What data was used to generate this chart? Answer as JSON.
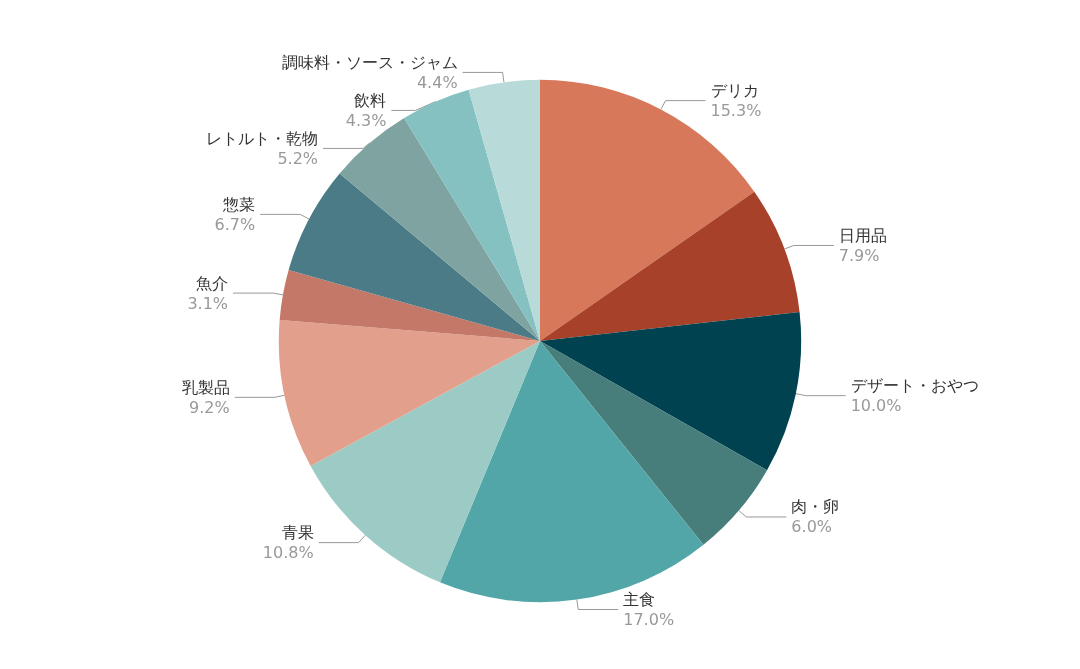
{
  "chart_data": {
    "type": "pie",
    "categories": [
      "デリカ",
      "日用品",
      "デザート・おやつ",
      "肉・卵",
      "主食",
      "青果",
      "乳製品",
      "魚介",
      "惣菜",
      "レトルト・乾物",
      "飲料",
      "調味料・ソース・ジャム"
    ],
    "values": [
      15.3,
      7.9,
      10.0,
      6.0,
      17.0,
      10.8,
      9.2,
      3.1,
      6.7,
      5.2,
      4.3,
      4.4
    ],
    "value_labels": [
      "15.3%",
      "7.9%",
      "10.0%",
      "6.0%",
      "17.0%",
      "10.8%",
      "9.2%",
      "3.1%",
      "6.7%",
      "5.2%",
      "4.3%",
      "4.4%"
    ],
    "colors": [
      "#d8785a",
      "#a84129",
      "#00424f",
      "#477d7b",
      "#52a6a7",
      "#9ccbc5",
      "#e29f8b",
      "#c47868",
      "#4b7b86",
      "#7fa3a1",
      "#85c1c1",
      "#b8dbd9"
    ],
    "legend": false
  }
}
